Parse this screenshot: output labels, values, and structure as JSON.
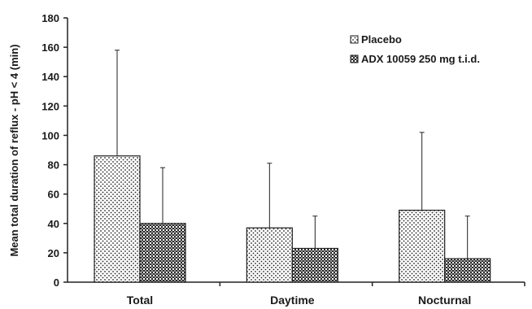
{
  "chart_data": {
    "type": "bar",
    "title": "",
    "xlabel": "",
    "ylabel": "Mean total duration of reflux - pH < 4 (min)",
    "ylim": [
      0,
      180
    ],
    "yticks": [
      0,
      20,
      40,
      60,
      80,
      100,
      120,
      140,
      160,
      180
    ],
    "categories": [
      "Total",
      "Daytime",
      "Nocturnal"
    ],
    "error_bars": "upper",
    "legend_position": "top-right",
    "grid": false,
    "series": [
      {
        "name": "Placebo",
        "pattern": "dots",
        "values": [
          86,
          37,
          49
        ],
        "errors": [
          72,
          44,
          53
        ]
      },
      {
        "name": "ADX 10059 250 mg t.i.d.",
        "pattern": "checker",
        "values": [
          40,
          23,
          16
        ],
        "errors": [
          38,
          22,
          29
        ]
      }
    ]
  }
}
